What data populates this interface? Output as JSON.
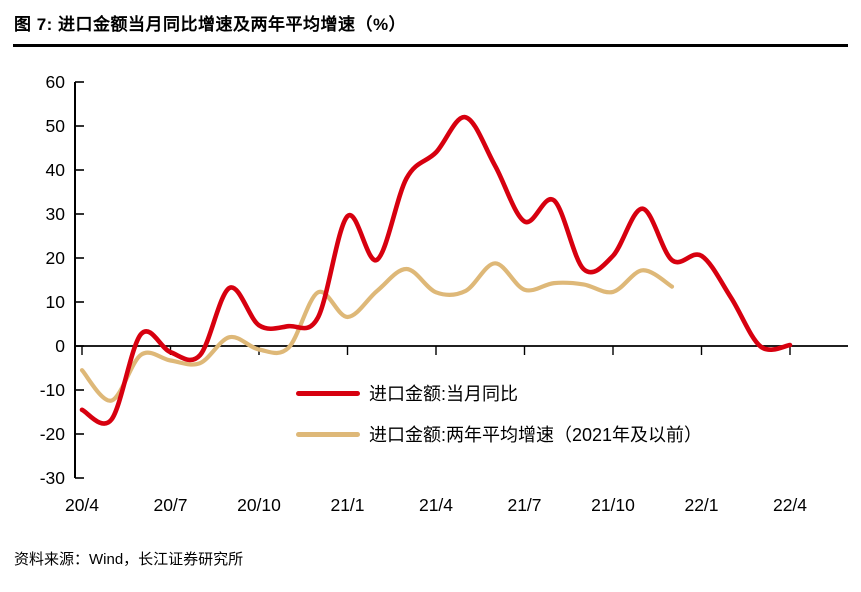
{
  "page": {
    "title": "图 7: 进口金额当月同比增速及两年平均增速（%）",
    "source": "资料来源：Wind，长江证券研究所"
  },
  "chart_data": {
    "type": "line",
    "title": "进口金额当月同比增速及两年平均增速（%）",
    "xlabel": "",
    "ylabel": "",
    "ylim": [
      -30,
      60
    ],
    "y_tick_step": 10,
    "y_tick_labels": [
      "60",
      "50",
      "40",
      "30",
      "20",
      "10",
      "0",
      "-10",
      "-20",
      "-30"
    ],
    "x": [
      "20/4",
      "20/5",
      "20/6",
      "20/7",
      "20/8",
      "20/9",
      "20/10",
      "20/11",
      "20/12",
      "21/1",
      "21/2",
      "21/3",
      "21/4",
      "21/5",
      "21/6",
      "21/7",
      "21/8",
      "21/9",
      "21/10",
      "21/11",
      "21/12",
      "22/1",
      "22/2",
      "22/3",
      "22/4"
    ],
    "x_axis_tick_labels": [
      "20/4",
      "20/7",
      "20/10",
      "21/1",
      "21/4",
      "21/7",
      "21/10",
      "22/1",
      "22/4"
    ],
    "grid": false,
    "smooth": true,
    "legend_position": "inside-bottom-center",
    "axis_color": "#000000",
    "series": [
      {
        "name": "进口金额:当月同比",
        "color": "#d7000f",
        "line_width": 4.6,
        "values": [
          -14.5,
          -16.7,
          2.7,
          -1.4,
          -2.1,
          13.2,
          4.7,
          4.5,
          6.5,
          29.5,
          19.6,
          38.1,
          44.0,
          52.0,
          41.0,
          28.3,
          33.1,
          17.5,
          20.5,
          31.2,
          19.5,
          20.5,
          11.0,
          -0.1,
          0.2
        ]
      },
      {
        "name": "进口金额:两年平均增速（2021年及以前）",
        "color": "#deb878",
        "line_width": 4.2,
        "values": [
          -5.5,
          -12.4,
          -2.0,
          -3.3,
          -3.9,
          2.0,
          -0.8,
          -0.4,
          12.2,
          6.6,
          12.5,
          17.5,
          12.2,
          12.5,
          18.8,
          12.8,
          14.3,
          14.0,
          12.3,
          17.2,
          13.5
        ]
      }
    ]
  }
}
